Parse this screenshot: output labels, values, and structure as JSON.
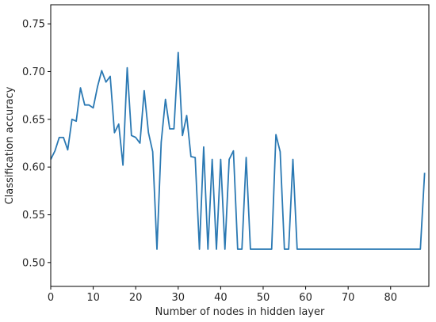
{
  "chart_data": {
    "type": "line",
    "xlabel": "Number of nodes in hidden layer",
    "ylabel": "Classification accuracy",
    "xlim": [
      0,
      89
    ],
    "ylim": [
      0.475,
      0.77
    ],
    "x_ticks": [
      0,
      10,
      20,
      30,
      40,
      50,
      60,
      70,
      80
    ],
    "y_ticks": [
      0.5,
      0.55,
      0.6,
      0.65,
      0.7,
      0.75
    ],
    "x_tick_labels": [
      "0",
      "10",
      "20",
      "30",
      "40",
      "50",
      "60",
      "70",
      "80"
    ],
    "y_tick_labels": [
      "0.50",
      "0.55",
      "0.60",
      "0.65",
      "0.70",
      "0.75"
    ],
    "grid": false,
    "series_color": "#2b79b3",
    "series": [
      {
        "x": [
          0,
          1,
          2,
          3,
          4,
          5,
          6,
          7,
          8,
          9,
          10,
          11,
          12,
          13,
          14,
          15,
          16,
          17,
          18,
          19,
          20,
          21,
          22,
          23,
          24,
          25,
          26,
          27,
          28,
          29,
          30,
          31,
          32,
          33,
          34,
          35,
          36,
          37,
          38,
          39,
          40,
          41,
          42,
          43,
          44,
          45,
          46,
          47,
          48,
          49,
          50,
          51,
          52,
          53,
          54,
          55,
          56,
          57,
          58,
          59,
          60,
          61,
          62,
          63,
          64,
          65,
          66,
          67,
          68,
          69,
          70,
          71,
          72,
          73,
          74,
          75,
          76,
          77,
          78,
          79,
          80,
          81,
          82,
          83,
          84,
          85,
          86,
          87,
          88
        ],
        "values": [
          0.608,
          0.617,
          0.631,
          0.631,
          0.618,
          0.65,
          0.648,
          0.683,
          0.665,
          0.665,
          0.662,
          0.684,
          0.701,
          0.689,
          0.695,
          0.636,
          0.645,
          0.602,
          0.704,
          0.633,
          0.631,
          0.625,
          0.68,
          0.636,
          0.616,
          0.514,
          0.626,
          0.671,
          0.64,
          0.64,
          0.72,
          0.633,
          0.654,
          0.611,
          0.61,
          0.514,
          0.621,
          0.514,
          0.608,
          0.514,
          0.608,
          0.514,
          0.608,
          0.617,
          0.514,
          0.514,
          0.61,
          0.514,
          0.514,
          0.514,
          0.514,
          0.514,
          0.514,
          0.634,
          0.616,
          0.514,
          0.514,
          0.608,
          0.514,
          0.514,
          0.514,
          0.514,
          0.514,
          0.514,
          0.514,
          0.514,
          0.514,
          0.514,
          0.514,
          0.514,
          0.514,
          0.514,
          0.514,
          0.514,
          0.514,
          0.514,
          0.514,
          0.514,
          0.514,
          0.514,
          0.514,
          0.514,
          0.514,
          0.514,
          0.514,
          0.514,
          0.514,
          0.514,
          0.594
        ]
      }
    ]
  }
}
